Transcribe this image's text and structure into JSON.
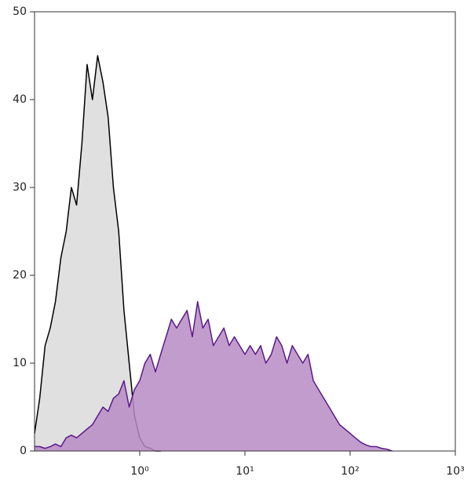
{
  "chart_data": {
    "type": "area",
    "log_x": true,
    "x": [
      0.1,
      0.112,
      0.126,
      0.141,
      0.158,
      0.178,
      0.2,
      0.224,
      0.251,
      0.282,
      0.316,
      0.355,
      0.398,
      0.447,
      0.501,
      0.562,
      0.631,
      0.708,
      0.794,
      0.891,
      1,
      1.12,
      1.26,
      1.41,
      1.58,
      1.78,
      2,
      2.24,
      2.51,
      2.82,
      3.16,
      3.55,
      3.98,
      4.47,
      5.01,
      5.62,
      6.31,
      7.08,
      7.94,
      8.91,
      10,
      11.2,
      12.6,
      14.1,
      15.8,
      17.8,
      20,
      22.4,
      25.1,
      28.2,
      31.6,
      35.5,
      39.8,
      44.7,
      50.1,
      56.2,
      63.1,
      70.8,
      79.4,
      89.1,
      100,
      112,
      126,
      141,
      158,
      178,
      200,
      224,
      251
    ],
    "series": [
      {
        "color": "#000000",
        "fill": "#e0e0e0",
        "values": [
          2,
          6,
          12,
          14,
          17,
          22,
          25,
          30,
          28,
          35,
          44,
          40,
          45,
          42,
          38,
          30,
          25,
          16,
          10,
          4,
          1.5,
          0.5,
          0.3,
          0,
          0,
          null,
          null,
          null,
          null,
          null,
          null,
          null,
          null,
          null,
          null,
          null,
          null,
          null,
          null,
          null,
          null,
          null,
          null,
          null,
          null,
          null,
          null,
          null,
          null,
          null,
          null,
          null,
          null,
          null,
          null,
          null,
          null,
          null,
          null,
          null,
          null,
          null,
          null,
          null,
          null,
          null,
          null,
          null,
          null
        ]
      },
      {
        "color": "#5a1a86",
        "fill": "#b98bc5",
        "values": [
          0.5,
          0.5,
          0.3,
          0.5,
          0.8,
          0.5,
          1.5,
          1.8,
          1.5,
          2,
          2.5,
          3,
          4,
          5,
          4.5,
          6,
          6.5,
          8,
          5,
          7,
          8,
          10,
          11,
          9,
          11,
          13,
          15,
          14,
          15,
          16,
          13,
          17,
          14,
          15,
          12,
          13,
          14,
          12,
          13,
          12,
          11,
          12,
          11,
          12,
          10,
          11,
          13,
          12,
          10,
          12,
          11,
          10,
          11,
          8,
          7,
          6,
          5,
          4,
          3,
          2.5,
          2,
          1.5,
          1,
          0.7,
          0.5,
          0.5,
          0.3,
          0.2,
          0
        ]
      }
    ],
    "xlim": [
      0.1,
      1000
    ],
    "ylim": [
      0,
      50
    ],
    "xticks": [
      {
        "value": 1,
        "label": "10⁰"
      },
      {
        "value": 10,
        "label": "10¹"
      },
      {
        "value": 100,
        "label": "10²"
      },
      {
        "value": 1000,
        "label": "10³"
      }
    ],
    "yticks": [
      0,
      10,
      20,
      30,
      40,
      50
    ]
  }
}
